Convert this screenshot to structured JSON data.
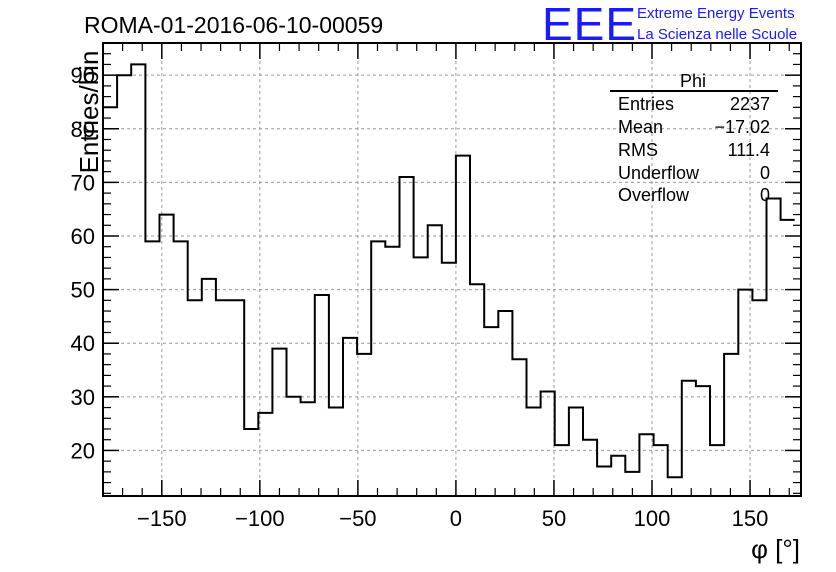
{
  "chart_data": {
    "type": "bar",
    "title": "ROMA-01-2016-06-10-00059",
    "xlabel": "φ [°]",
    "ylabel": "Entries/bin",
    "xlim": [
      -180,
      176
    ],
    "ylim": [
      11.5,
      96
    ],
    "x_ticks": [
      -150,
      -100,
      -50,
      0,
      50,
      100,
      150
    ],
    "x_tick_labels": [
      "−150",
      "−100",
      "−50",
      "0",
      "50",
      "100",
      "150"
    ],
    "y_ticks": [
      20,
      30,
      40,
      50,
      60,
      70,
      80,
      90
    ],
    "y_tick_labels": [
      "20",
      "30",
      "40",
      "50",
      "60",
      "70",
      "80",
      "90"
    ],
    "grid": true,
    "bin_width": 7.2,
    "x_bin_edges_start": -180,
    "series": [
      {
        "values": [
          84,
          90,
          92,
          59,
          64,
          59,
          48,
          52,
          48,
          48,
          24,
          27,
          39,
          30,
          29,
          49,
          28,
          41,
          38,
          59,
          58,
          71,
          56,
          62,
          55,
          75,
          51,
          43,
          46,
          37,
          28,
          31,
          21,
          28,
          22,
          17,
          19,
          16,
          23,
          21,
          15,
          33,
          32,
          21,
          38,
          50,
          48,
          67,
          63
        ]
      }
    ],
    "stats_box": {
      "title": "Phi",
      "rows": [
        {
          "label": "Entries",
          "value": "2237"
        },
        {
          "label": "Mean",
          "value": "−17.02"
        },
        {
          "label": "RMS",
          "value": "111.4"
        },
        {
          "label": "Underflow",
          "value": "0"
        },
        {
          "label": "Overflow",
          "value": "0"
        }
      ]
    },
    "logo": {
      "mark": "EEE",
      "line1": "Extreme Energy Events",
      "line2": "La Scienza nelle Scuole",
      "color": "#1a1aff"
    },
    "line_color": "#000000",
    "grid_color": "#999999"
  }
}
